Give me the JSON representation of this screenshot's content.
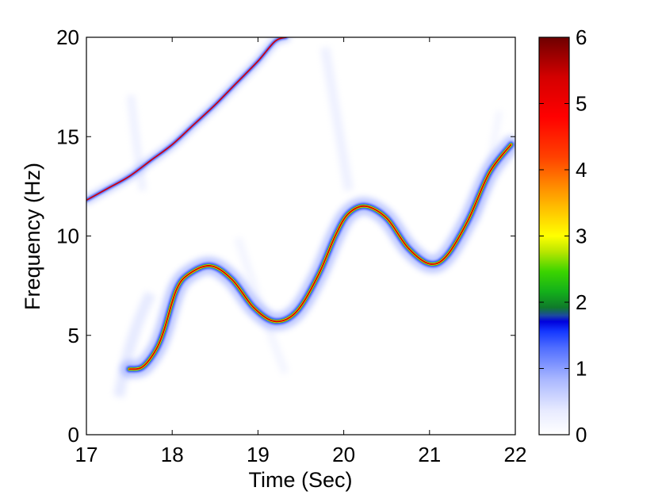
{
  "chart_data": {
    "type": "heatmap",
    "title": "",
    "xlabel": "Time (Sec)",
    "ylabel": "Frequency (Hz)",
    "xlim": [
      17,
      22
    ],
    "ylim": [
      0,
      20
    ],
    "xticks": [
      "17",
      "18",
      "19",
      "20",
      "21",
      "22"
    ],
    "yticks": [
      "0",
      "5",
      "10",
      "15",
      "20"
    ],
    "colorbar": {
      "range": [
        0,
        6
      ],
      "ticks": [
        "0",
        "1",
        "2",
        "3",
        "4",
        "5",
        "6"
      ],
      "colormap": "jet-like"
    },
    "components": [
      {
        "description": "rising chirp",
        "points": [
          [
            17.0,
            11.8
          ],
          [
            17.25,
            12.4
          ],
          [
            17.5,
            13.0
          ],
          [
            17.75,
            13.8
          ],
          [
            18.0,
            14.6
          ],
          [
            18.25,
            15.6
          ],
          [
            18.5,
            16.6
          ],
          [
            18.75,
            17.7
          ],
          [
            19.0,
            18.8
          ],
          [
            19.2,
            19.8
          ],
          [
            19.33,
            20.0
          ]
        ]
      },
      {
        "description": "oscillating component",
        "points": [
          [
            17.5,
            3.3
          ],
          [
            17.65,
            3.4
          ],
          [
            17.8,
            4.2
          ],
          [
            17.9,
            5.2
          ],
          [
            18.05,
            7.3
          ],
          [
            18.2,
            8.1
          ],
          [
            18.45,
            8.5
          ],
          [
            18.7,
            7.8
          ],
          [
            18.95,
            6.4
          ],
          [
            19.2,
            5.7
          ],
          [
            19.45,
            6.2
          ],
          [
            19.7,
            8.0
          ],
          [
            19.9,
            10.0
          ],
          [
            20.05,
            11.1
          ],
          [
            20.25,
            11.5
          ],
          [
            20.5,
            10.9
          ],
          [
            20.75,
            9.4
          ],
          [
            21.0,
            8.6
          ],
          [
            21.2,
            9.0
          ],
          [
            21.45,
            10.8
          ],
          [
            21.7,
            13.2
          ],
          [
            21.95,
            14.6
          ]
        ]
      }
    ],
    "colors": {
      "background": "#ffffff",
      "peak": "#d40000",
      "halo": "#2a50ff"
    }
  }
}
